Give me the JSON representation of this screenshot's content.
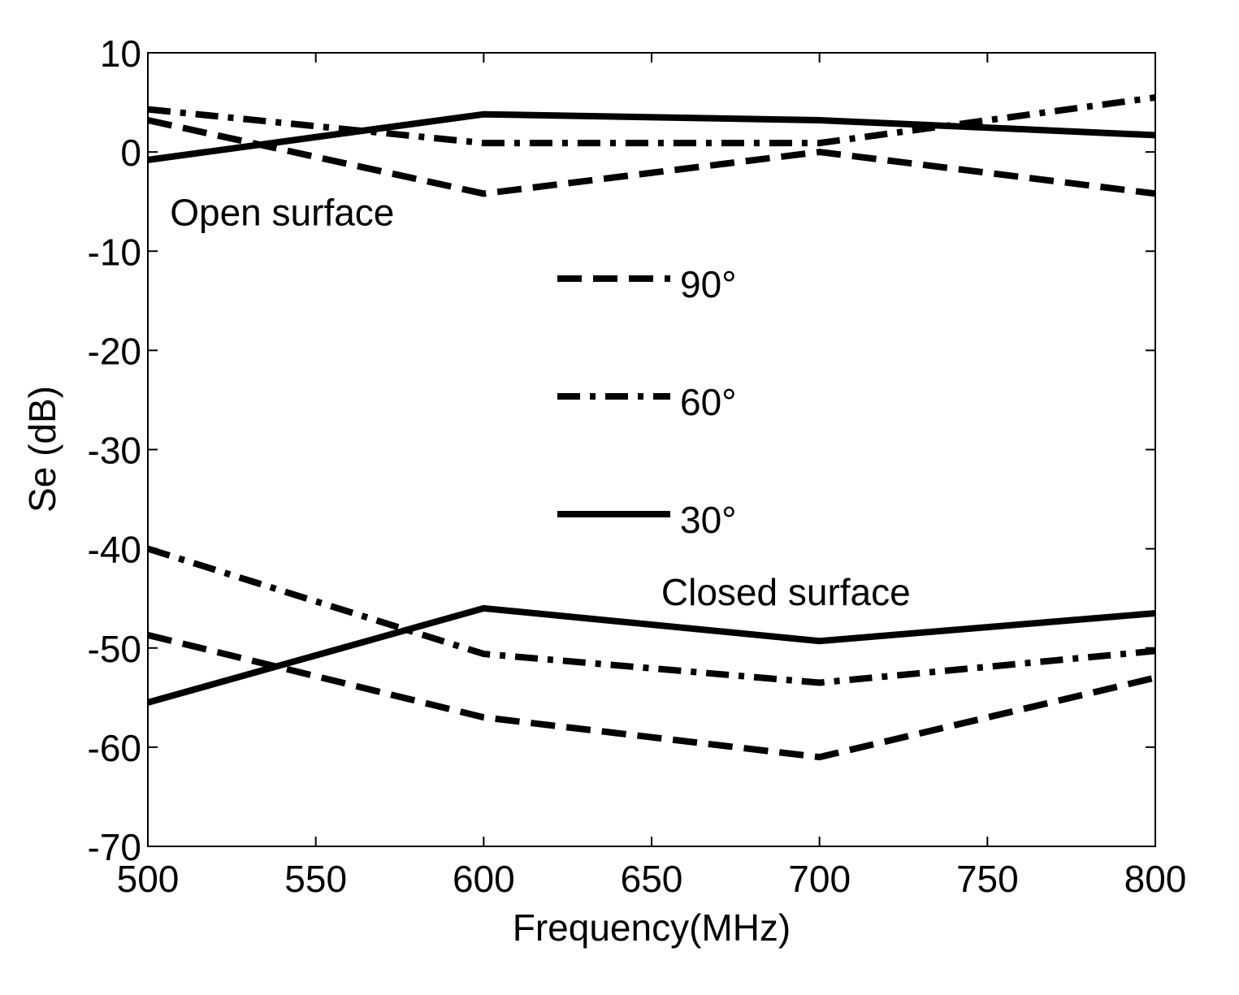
{
  "chart_data": {
    "type": "line",
    "xlabel": "Frequency(MHz)",
    "ylabel": "Se (dB)",
    "xlim": [
      500,
      800
    ],
    "ylim": [
      -70,
      10
    ],
    "x_ticks": [
      "500",
      "550",
      "600",
      "650",
      "700",
      "750",
      "800"
    ],
    "y_ticks": [
      "10",
      "0",
      "-10",
      "-20",
      "-30",
      "-40",
      "-50",
      "-60",
      "-70"
    ],
    "grid": false,
    "legend": [
      "90°",
      "60°",
      "30°"
    ],
    "legend_placement": "center",
    "annotations": [
      {
        "text": "Open surface",
        "x": 540,
        "y": -6
      },
      {
        "text": "Closed surface",
        "x": 690,
        "y": -44.3
      }
    ],
    "series": [
      {
        "name": "90°",
        "style": "dashed",
        "group": "Open surface",
        "x": [
          500,
          600,
          700,
          800
        ],
        "y": [
          3.2,
          -4.2,
          0.0,
          -4.2
        ]
      },
      {
        "name": "60°",
        "style": "dashdot",
        "group": "Open surface",
        "x": [
          500,
          600,
          700,
          800
        ],
        "y": [
          4.3,
          0.9,
          0.9,
          5.5
        ]
      },
      {
        "name": "30°",
        "style": "solid",
        "group": "Open surface",
        "x": [
          500,
          600,
          700,
          800
        ],
        "y": [
          -0.8,
          3.8,
          3.2,
          1.7
        ]
      },
      {
        "name": "90°",
        "style": "dashed",
        "group": "Closed surface",
        "x": [
          500,
          600,
          700,
          800
        ],
        "y": [
          -48.7,
          -57.0,
          -61.0,
          -53.0
        ]
      },
      {
        "name": "60°",
        "style": "dashdot",
        "group": "Closed surface",
        "x": [
          500,
          600,
          700,
          800
        ],
        "y": [
          -40.0,
          -50.6,
          -53.5,
          -50.3
        ]
      },
      {
        "name": "30°",
        "style": "solid",
        "group": "Closed surface",
        "x": [
          500,
          600,
          700,
          800
        ],
        "y": [
          -55.5,
          -46.0,
          -49.3,
          -46.5
        ]
      }
    ]
  }
}
